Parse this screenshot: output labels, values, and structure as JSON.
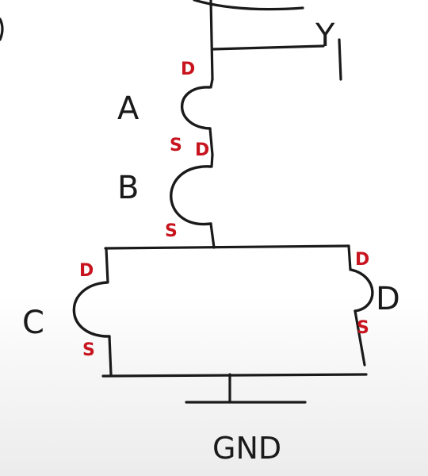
{
  "diagram": {
    "output_label": "Y",
    "transistors": [
      {
        "name": "A",
        "drain": "D",
        "source": "S"
      },
      {
        "name": "B",
        "drain": "D",
        "source": "S"
      },
      {
        "name": "C",
        "drain": "D",
        "source": "S"
      },
      {
        "name": "D",
        "drain": "D",
        "source": "S"
      }
    ],
    "ground_label": "GND"
  },
  "colors": {
    "ink": "#1a1a1a",
    "terminal_ink": "#c8141e"
  }
}
